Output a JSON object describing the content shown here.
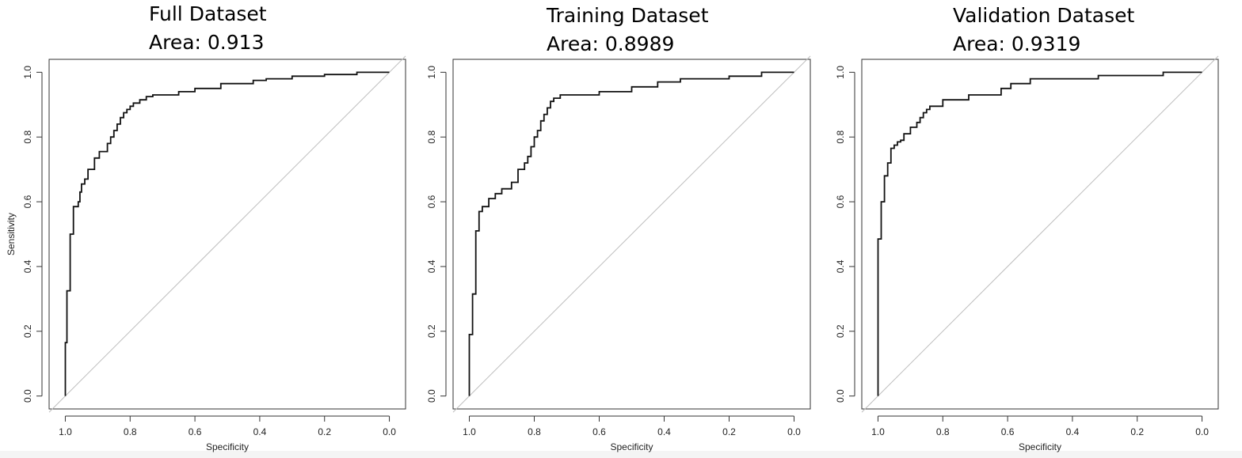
{
  "chart_data": [
    {
      "type": "line",
      "title": "Full Dataset",
      "subtitle": "Area: 0.913",
      "xlabel": "Specificity",
      "ylabel": "Sensitivity",
      "xlim": [
        1.05,
        -0.05
      ],
      "ylim": [
        -0.04,
        1.04
      ],
      "xticks": [
        "1.0",
        "0.8",
        "0.6",
        "0.4",
        "0.2",
        "0.0"
      ],
      "yticks": [
        "0.0",
        "0.2",
        "0.4",
        "0.6",
        "0.8",
        "1.0"
      ],
      "diagonal_color": "#bdbdbd",
      "curve_color": "#111111",
      "series": [
        {
          "x": [
            1.0,
            1.0,
            0.995,
            0.995,
            0.985,
            0.985,
            0.975,
            0.975,
            0.96,
            0.96,
            0.955,
            0.955,
            0.95,
            0.95,
            0.94,
            0.94,
            0.93,
            0.93,
            0.91,
            0.91,
            0.895,
            0.895,
            0.87,
            0.87,
            0.86,
            0.86,
            0.85,
            0.85,
            0.84,
            0.84,
            0.83,
            0.83,
            0.82,
            0.82,
            0.81,
            0.81,
            0.8,
            0.8,
            0.79,
            0.79,
            0.77,
            0.77,
            0.75,
            0.75,
            0.73,
            0.73,
            0.65,
            0.65,
            0.6,
            0.6,
            0.52,
            0.52,
            0.42,
            0.42,
            0.38,
            0.38,
            0.3,
            0.3,
            0.2,
            0.2,
            0.1,
            0.1,
            0.0
          ],
          "y": [
            0.0,
            0.165,
            0.165,
            0.325,
            0.325,
            0.5,
            0.5,
            0.585,
            0.585,
            0.6,
            0.6,
            0.63,
            0.63,
            0.655,
            0.655,
            0.67,
            0.67,
            0.7,
            0.7,
            0.735,
            0.735,
            0.755,
            0.755,
            0.78,
            0.78,
            0.8,
            0.8,
            0.82,
            0.82,
            0.84,
            0.84,
            0.86,
            0.86,
            0.875,
            0.875,
            0.885,
            0.885,
            0.895,
            0.895,
            0.905,
            0.905,
            0.915,
            0.915,
            0.925,
            0.925,
            0.93,
            0.93,
            0.94,
            0.94,
            0.95,
            0.95,
            0.965,
            0.965,
            0.975,
            0.975,
            0.98,
            0.98,
            0.988,
            0.988,
            0.993,
            0.993,
            1.0,
            1.0
          ]
        }
      ]
    },
    {
      "type": "line",
      "title": "Training Dataset",
      "subtitle": "Area: 0.8989",
      "xlabel": "Specificity",
      "ylabel": "",
      "xlim": [
        1.05,
        -0.05
      ],
      "ylim": [
        -0.04,
        1.04
      ],
      "xticks": [
        "1.0",
        "0.8",
        "0.6",
        "0.4",
        "0.2",
        "0.0"
      ],
      "yticks": [
        "0.0",
        "0.2",
        "0.4",
        "0.6",
        "0.8",
        "1.0"
      ],
      "diagonal_color": "#bdbdbd",
      "curve_color": "#111111",
      "series": [
        {
          "x": [
            1.0,
            1.0,
            0.99,
            0.99,
            0.98,
            0.98,
            0.97,
            0.97,
            0.96,
            0.96,
            0.94,
            0.94,
            0.92,
            0.92,
            0.9,
            0.9,
            0.87,
            0.87,
            0.85,
            0.85,
            0.83,
            0.83,
            0.82,
            0.82,
            0.81,
            0.81,
            0.8,
            0.8,
            0.79,
            0.79,
            0.78,
            0.78,
            0.77,
            0.77,
            0.76,
            0.76,
            0.75,
            0.75,
            0.74,
            0.74,
            0.72,
            0.72,
            0.6,
            0.6,
            0.5,
            0.5,
            0.42,
            0.42,
            0.35,
            0.35,
            0.2,
            0.2,
            0.1,
            0.1,
            0.0
          ],
          "y": [
            0.0,
            0.19,
            0.19,
            0.315,
            0.315,
            0.51,
            0.51,
            0.57,
            0.57,
            0.585,
            0.585,
            0.61,
            0.61,
            0.625,
            0.625,
            0.64,
            0.64,
            0.66,
            0.66,
            0.7,
            0.7,
            0.72,
            0.72,
            0.74,
            0.74,
            0.77,
            0.77,
            0.8,
            0.8,
            0.82,
            0.82,
            0.85,
            0.85,
            0.87,
            0.87,
            0.89,
            0.89,
            0.91,
            0.91,
            0.92,
            0.92,
            0.93,
            0.93,
            0.94,
            0.94,
            0.955,
            0.955,
            0.97,
            0.97,
            0.98,
            0.98,
            0.988,
            0.988,
            1.0,
            1.0
          ]
        }
      ]
    },
    {
      "type": "line",
      "title": "Validation Dataset",
      "subtitle": "Area: 0.9319",
      "xlabel": "Specificity",
      "ylabel": "",
      "xlim": [
        1.05,
        -0.05
      ],
      "ylim": [
        -0.04,
        1.04
      ],
      "xticks": [
        "1.0",
        "0.8",
        "0.6",
        "0.4",
        "0.2",
        "0.0"
      ],
      "yticks": [
        "0.0",
        "0.2",
        "0.4",
        "0.6",
        "0.8",
        "1.0"
      ],
      "diagonal_color": "#bdbdbd",
      "curve_color": "#111111",
      "series": [
        {
          "x": [
            1.0,
            1.0,
            0.99,
            0.99,
            0.98,
            0.98,
            0.97,
            0.97,
            0.96,
            0.96,
            0.95,
            0.95,
            0.94,
            0.94,
            0.93,
            0.93,
            0.92,
            0.92,
            0.9,
            0.9,
            0.88,
            0.88,
            0.87,
            0.87,
            0.86,
            0.86,
            0.85,
            0.85,
            0.84,
            0.84,
            0.8,
            0.8,
            0.72,
            0.72,
            0.62,
            0.62,
            0.59,
            0.59,
            0.53,
            0.53,
            0.32,
            0.32,
            0.12,
            0.12,
            0.0
          ],
          "y": [
            0.0,
            0.485,
            0.485,
            0.6,
            0.6,
            0.68,
            0.68,
            0.72,
            0.72,
            0.765,
            0.765,
            0.775,
            0.775,
            0.785,
            0.785,
            0.79,
            0.79,
            0.81,
            0.81,
            0.83,
            0.83,
            0.845,
            0.845,
            0.86,
            0.86,
            0.875,
            0.875,
            0.885,
            0.885,
            0.895,
            0.895,
            0.915,
            0.915,
            0.93,
            0.93,
            0.95,
            0.95,
            0.965,
            0.965,
            0.98,
            0.98,
            0.99,
            0.99,
            1.0,
            1.0
          ]
        }
      ]
    }
  ]
}
